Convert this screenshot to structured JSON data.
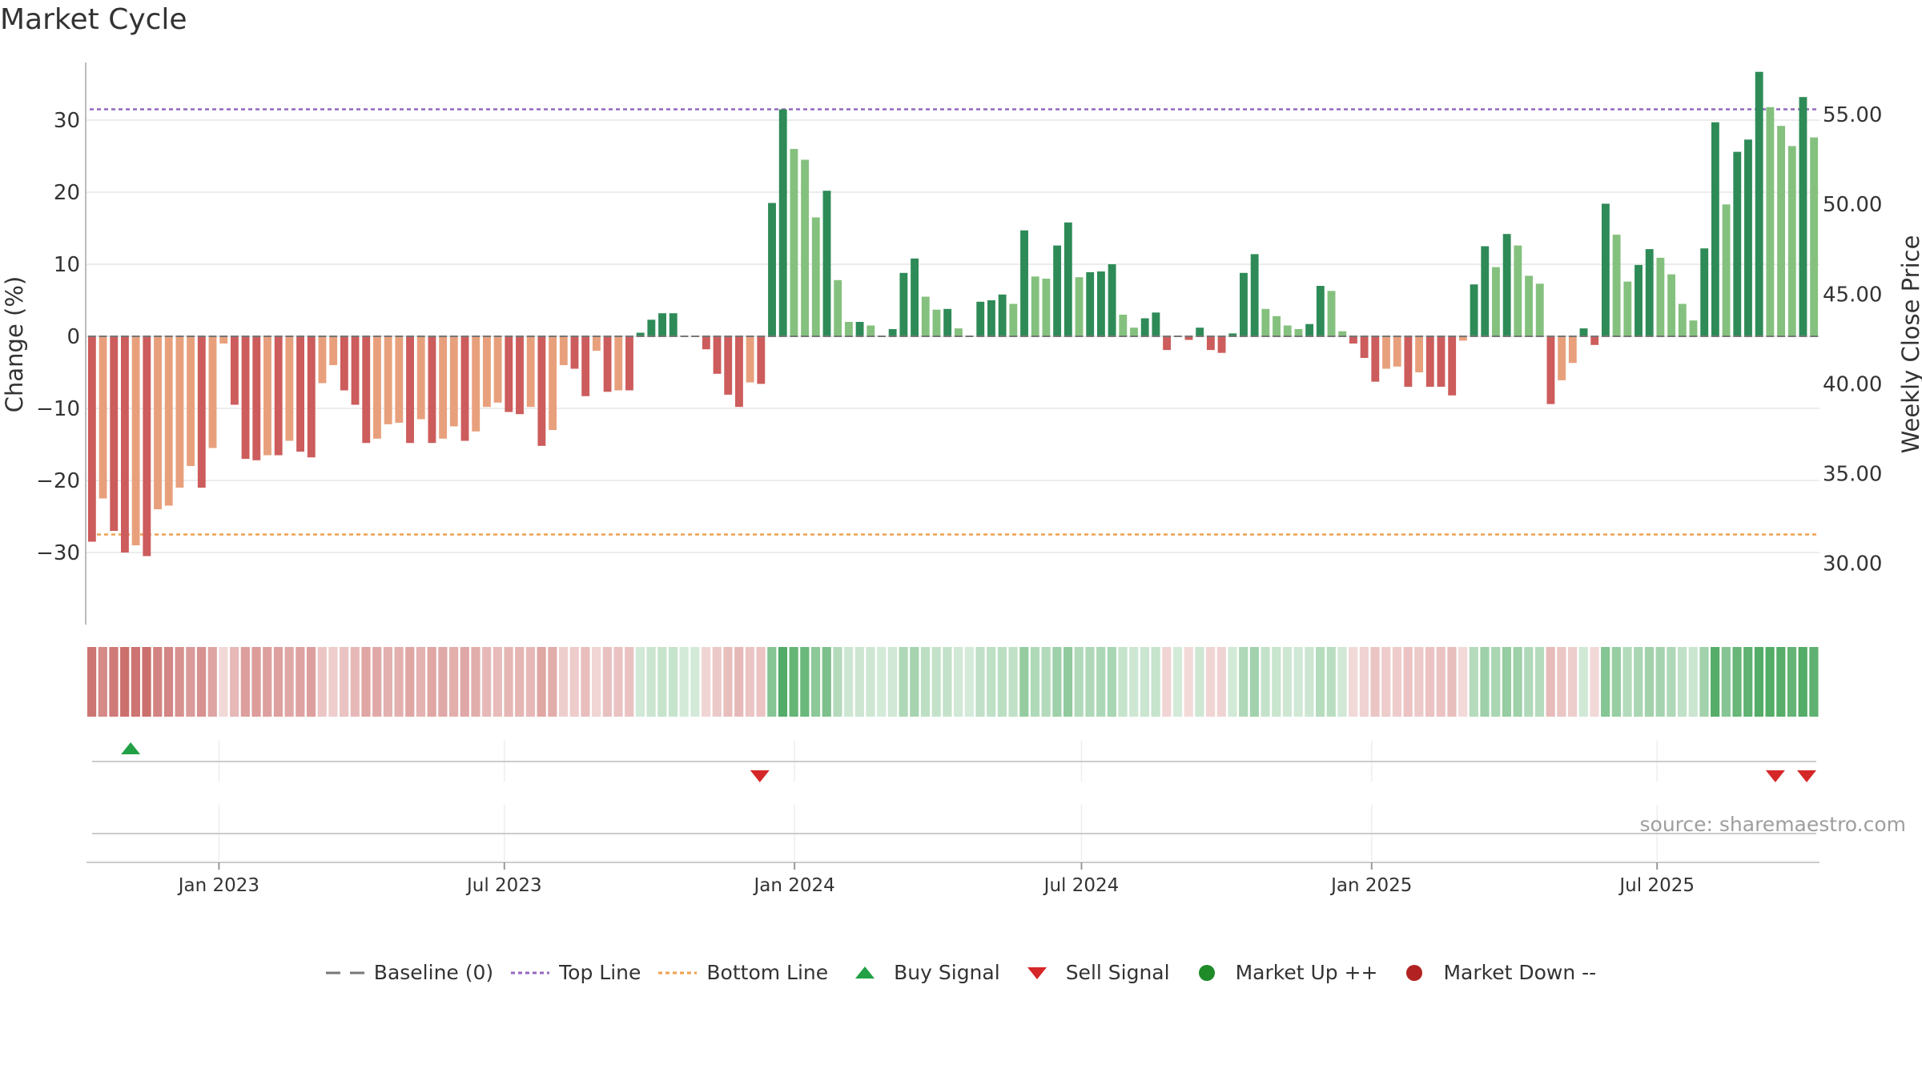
{
  "title": "Market Cycle",
  "source_text": "source: sharemaestro.com",
  "legend": {
    "items": [
      {
        "label": "Baseline (0)",
        "symbol": "dash",
        "color": "#777777"
      },
      {
        "label": "Top Line",
        "symbol": "dotted",
        "color": "#9467bd"
      },
      {
        "label": "Bottom Line",
        "symbol": "dotted",
        "color": "#f0a050"
      },
      {
        "label": "Buy Signal",
        "symbol": "triangle-up",
        "color": "#22a046"
      },
      {
        "label": "Sell Signal",
        "symbol": "triangle-down",
        "color": "#d62728"
      },
      {
        "label": "Market Up ++",
        "symbol": "circle",
        "color": "#1e8a28"
      },
      {
        "label": "Market Down --",
        "symbol": "circle",
        "color": "#b22222"
      }
    ]
  },
  "chart_data": {
    "type": "bar",
    "title": "Market Cycle",
    "ylabel": "Change (%)",
    "y2label": "Weekly Close Price",
    "ylim": [
      -40,
      38
    ],
    "yticks": [
      -30,
      -20,
      -10,
      0,
      10,
      20,
      30
    ],
    "ytick_labels": [
      "−30",
      "−20",
      "−10",
      "0",
      "10",
      "20",
      "30"
    ],
    "y2lim": [
      26.6,
      57.9
    ],
    "y2ticks": [
      30,
      35,
      40,
      45,
      50,
      55
    ],
    "y2tick_labels": [
      "30.00",
      "35.00",
      "40.00",
      "45.00",
      "50.00",
      "55.00"
    ],
    "top_line": 31.5,
    "bottom_line": -27.5,
    "x_start": "2022-10-09",
    "x_end": "2025-10-12",
    "xticks": [
      "2023-01-01",
      "2023-07-01",
      "2024-01-01",
      "2024-07-01",
      "2025-01-01",
      "2025-07-01"
    ],
    "xtick_labels": [
      "Jan 2023",
      "Jul 2023",
      "Jan 2024",
      "Jul 2024",
      "Jan 2025",
      "Jul 2025"
    ],
    "grid": true,
    "legend_position": "bottom",
    "colors": {
      "neg_strong": "#cd5c5c",
      "neg_light": "#e8a07c",
      "pos_strong": "#2e8b57",
      "pos_light": "#85c17e",
      "top_line": "#9467bd",
      "bottom_line": "#f0a050",
      "buy": "#22a046",
      "sell": "#d62728"
    },
    "series": [
      {
        "values": [
          -28.5,
          -22.5,
          -27,
          -30,
          -29,
          -30.5,
          -24,
          -23.5,
          -21,
          -18,
          -21,
          -15.5,
          -1,
          -9.5,
          -17,
          -17.2,
          -16.5,
          -16.5,
          -14.5,
          -16,
          -16.8,
          -6.5,
          -4,
          -7.5,
          -9.5,
          -14.8,
          -14.2,
          -12.2,
          -12,
          -14.8,
          -11.5,
          -14.8,
          -14.2,
          -12.5,
          -14.5,
          -13.2,
          -9.8,
          -9.2,
          -10.5,
          -10.8,
          -9.8,
          -15.2,
          -13,
          -4,
          -4.5,
          -8.3,
          -2,
          -7.7,
          -7.5,
          -7.5,
          0.5,
          2.3,
          3.2,
          3.2,
          0,
          0,
          -1.8,
          -5.2,
          -8.1,
          -9.8,
          -6.4,
          -6.6,
          18.5,
          31.5,
          26,
          24.5,
          16.5,
          20.2,
          7.8,
          2,
          2,
          1.5,
          0,
          1,
          8.8,
          10.8,
          5.5,
          3.7,
          3.8,
          1.1,
          0,
          4.8,
          5,
          5.8,
          4.5,
          14.7,
          8.3,
          8,
          12.6,
          15.8,
          8.2,
          8.9,
          9,
          10,
          3,
          1.2,
          2.5,
          3.3,
          -1.9,
          0,
          -0.5,
          1.2,
          -1.9,
          -2.3,
          0.4,
          8.8,
          11.4,
          3.8,
          2.8,
          1.5,
          1,
          1.7,
          7,
          6.3,
          0.7,
          -1,
          -3,
          -6.3,
          -4.5,
          -4.2,
          -7,
          -5,
          -7,
          -7,
          -8.2,
          -0.6,
          7.2,
          12.5,
          9.6,
          14.2,
          12.6,
          8.4,
          7.3,
          -9.4,
          -6.1,
          -3.7,
          1.1,
          -1.2,
          18.4,
          14.1,
          7.6,
          9.9,
          12.1,
          10.9,
          8.6,
          4.5,
          2.2,
          12.2,
          29.7,
          18.3,
          25.6,
          27.3,
          36.7,
          31.8,
          29.2,
          26.4,
          33.2,
          27.6
        ]
      }
    ],
    "buy_signals": [
      "2022-11-06"
    ],
    "sell_signals": [
      "2023-12-10",
      "2025-09-14",
      "2025-10-12"
    ]
  }
}
